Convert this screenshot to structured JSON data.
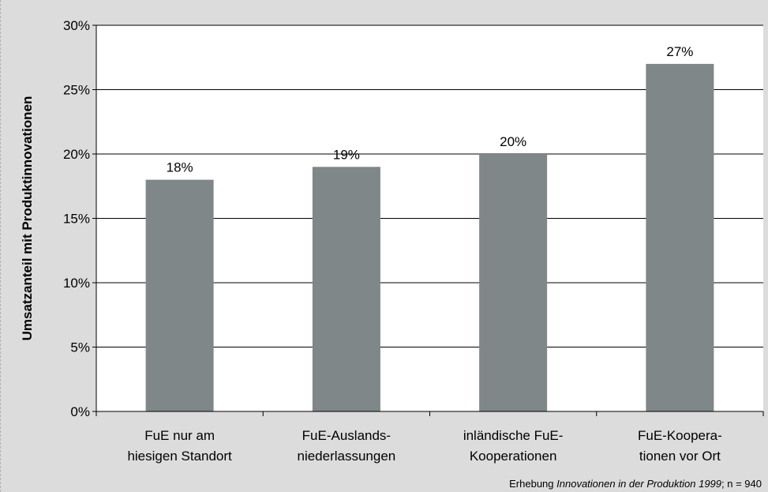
{
  "chart_data": {
    "type": "bar",
    "categories": [
      [
        "FuE nur am",
        "hiesigen Standort"
      ],
      [
        "FuE-Auslands-",
        "niederlassungen"
      ],
      [
        "inländische FuE-",
        "Kooperationen"
      ],
      [
        "FuE-Koopera-",
        "tionen vor Ort"
      ]
    ],
    "values": [
      18,
      19,
      20,
      27
    ],
    "data_labels": [
      "18%",
      "19%",
      "20%",
      "27%"
    ],
    "ylabel": "Umsatzanteil mit Produktinnovationen",
    "xlabel": "",
    "ylim": [
      0,
      30
    ],
    "y_ticks": [
      0,
      5,
      10,
      15,
      20,
      25,
      30
    ],
    "y_tick_labels": [
      "0%",
      "5%",
      "10%",
      "15%",
      "20%",
      "25%",
      "30%"
    ],
    "grid": true,
    "legend": "none",
    "colors": {
      "bar": "#7f8788",
      "plot_background": "#ffffff",
      "frame_background": "#dcdcdc",
      "gridline": "#000000"
    }
  },
  "source": {
    "prefix": "Erhebung ",
    "title": "Innovationen in der Produktion 1999",
    "suffix": "; n = 940"
  }
}
